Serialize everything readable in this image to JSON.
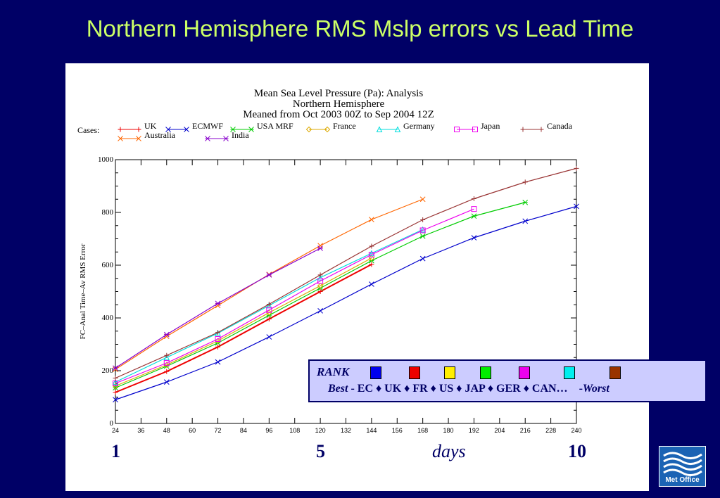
{
  "slide": {
    "title": "Northern Hemisphere RMS Mslp errors vs Lead Time"
  },
  "day_labels": {
    "one": "1",
    "five": "5",
    "unit": "days",
    "ten": "10"
  },
  "rank_box": {
    "label": "RANK",
    "best": "Best",
    "order": "EC ♦ UK ♦ FR ♦ US ♦ JAP ♦ GER ♦ CAN…",
    "worst": "Worst",
    "swatch_colors": [
      "#0000ee",
      "#ee0000",
      "#ffee00",
      "#00ee00",
      "#ee00ee",
      "#00eeee",
      "#993300"
    ]
  },
  "logo": {
    "text": "Met Office"
  },
  "chart_data": {
    "type": "line",
    "title": "Mean Sea Level Pressure (Pa):  Analysis",
    "subtitle_lines": [
      "Northern Hemisphere",
      "Meaned from Oct 2003 00Z to Sep 2004 12Z"
    ],
    "cases_label": "Cases:",
    "ylabel": "FC–Anal Time–Av RMS Error",
    "xlabel": "",
    "xlim": [
      24,
      240
    ],
    "ylim": [
      0,
      1000
    ],
    "xticks": [
      24,
      36,
      48,
      60,
      72,
      84,
      96,
      108,
      120,
      132,
      144,
      156,
      168,
      180,
      192,
      204,
      216,
      228,
      240
    ],
    "yticks": [
      0,
      200,
      400,
      600,
      800,
      1000
    ],
    "grid": false,
    "legend_position": "top",
    "series": [
      {
        "name": "UK",
        "color": "#ee0000",
        "marker": "+",
        "x": [
          24,
          48,
          72,
          96,
          120,
          144
        ],
        "values": [
          118,
          197,
          290,
          396,
          500,
          603
        ]
      },
      {
        "name": "ECMWF",
        "color": "#0000cc",
        "marker": "x",
        "x": [
          24,
          48,
          72,
          96,
          120,
          144,
          168,
          192,
          216,
          240
        ],
        "values": [
          90,
          157,
          233,
          328,
          427,
          528,
          625,
          704,
          767,
          823
        ]
      },
      {
        "name": "USA MRF",
        "color": "#00cc00",
        "marker": "*",
        "x": [
          24,
          48,
          72,
          96,
          120,
          144,
          168,
          192,
          216
        ],
        "values": [
          135,
          217,
          305,
          410,
          513,
          617,
          710,
          786,
          838
        ]
      },
      {
        "name": "France",
        "color": "#ddaa00",
        "marker": "diamond",
        "x": [
          24,
          48,
          72,
          96,
          120,
          144
        ],
        "values": [
          142,
          222,
          313,
          420,
          522,
          627
        ]
      },
      {
        "name": "Germany",
        "color": "#00dddd",
        "marker": "triangle",
        "x": [
          24,
          48,
          72,
          96,
          120,
          144,
          168
        ],
        "values": [
          157,
          250,
          342,
          447,
          553,
          645,
          735
        ]
      },
      {
        "name": "Japan",
        "color": "#ee00ee",
        "marker": "square",
        "x": [
          24,
          48,
          72,
          96,
          120,
          144,
          168,
          192
        ],
        "values": [
          152,
          229,
          320,
          430,
          540,
          640,
          732,
          813
        ]
      },
      {
        "name": "Canada",
        "color": "#993333",
        "marker": "+",
        "x": [
          24,
          48,
          72,
          96,
          120,
          144,
          168,
          192,
          216,
          240
        ],
        "values": [
          172,
          258,
          345,
          452,
          563,
          672,
          772,
          852,
          915,
          967
        ]
      },
      {
        "name": "Australia",
        "color": "#ff6600",
        "marker": "x",
        "x": [
          24,
          48,
          72,
          96,
          120,
          144,
          168
        ],
        "values": [
          205,
          330,
          447,
          565,
          674,
          773,
          850
        ]
      },
      {
        "name": "India",
        "color": "#8800cc",
        "marker": "*",
        "x": [
          24,
          48,
          72,
          96,
          120
        ],
        "values": [
          210,
          337,
          455,
          563,
          664
        ]
      }
    ]
  }
}
